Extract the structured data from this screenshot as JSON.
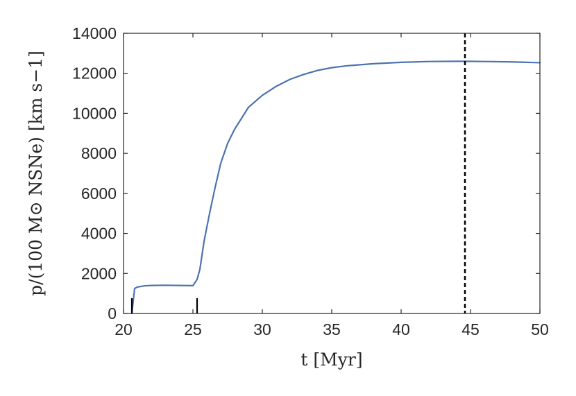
{
  "chart_data": {
    "type": "line",
    "xlabel": "t [Myr]",
    "ylabel": "p/(100 M⊙ NSNe) [km s−1]",
    "xlim": [
      20,
      50
    ],
    "ylim": [
      0,
      14000
    ],
    "xticks": [
      "20",
      "25",
      "30",
      "35",
      "40",
      "45",
      "50"
    ],
    "yticks": [
      "0",
      "2000",
      "4000",
      "6000",
      "8000",
      "10000",
      "12000",
      "14000"
    ],
    "grid": false,
    "series": [
      {
        "color": "#4c72b0",
        "x": [
          20.6,
          20.8,
          21.0,
          21.5,
          22.0,
          23.0,
          24.0,
          25.0,
          25.3,
          25.5,
          25.8,
          26.2,
          26.6,
          27.0,
          27.5,
          28.0,
          29.0,
          30.0,
          31.0,
          32.0,
          33.0,
          34.0,
          35.0,
          36.0,
          38.0,
          40.0,
          42.0,
          44.0,
          44.6,
          46.0,
          48.0,
          50.0
        ],
        "y": [
          0,
          1250,
          1320,
          1380,
          1400,
          1410,
          1400,
          1390,
          1700,
          2200,
          3600,
          5000,
          6300,
          7500,
          8500,
          9200,
          10300,
          10900,
          11350,
          11700,
          11950,
          12150,
          12280,
          12370,
          12480,
          12550,
          12590,
          12600,
          12600,
          12590,
          12570,
          12530
        ]
      }
    ],
    "event_markers_x": [
      20.6,
      25.3
    ],
    "vline": {
      "x": 44.6,
      "style": "dashed",
      "color": "#000000"
    }
  }
}
